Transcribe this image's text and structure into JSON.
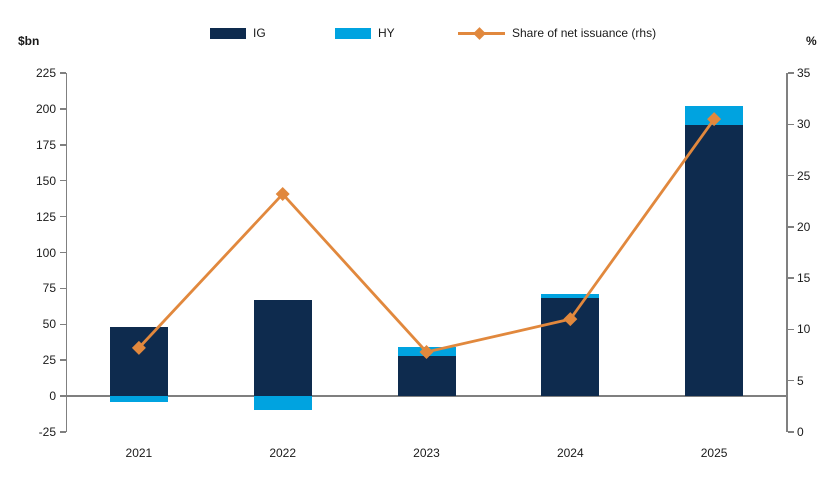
{
  "axes_units": {
    "left": "$bn",
    "right": "%"
  },
  "chart_data": {
    "type": "bar+line",
    "title": "",
    "categories": [
      "2021",
      "2022",
      "2023",
      "2024",
      "2025"
    ],
    "series": [
      {
        "name": "IG",
        "type": "bar",
        "axis": "left",
        "color": "#0e2b4e",
        "values": [
          48,
          67,
          28,
          68,
          189
        ]
      },
      {
        "name": "HY",
        "type": "bar",
        "axis": "left",
        "color": "#00a3e0",
        "values": [
          -4,
          -10,
          6,
          3,
          13
        ]
      },
      {
        "name": "Share of net issuance (rhs)",
        "type": "line",
        "axis": "right",
        "color": "#e1883d",
        "values": [
          8.2,
          23.2,
          7.8,
          11,
          30.5
        ]
      }
    ],
    "left_axis": {
      "unit": "$bn",
      "min": -25,
      "max": 225,
      "step": 25,
      "tick_labels": [
        "225",
        "200",
        "175",
        "150",
        "125",
        "100",
        "75",
        "50",
        "25",
        "0",
        "-25"
      ]
    },
    "right_axis": {
      "unit": "%",
      "min": 0,
      "max": 35,
      "step": 5,
      "tick_labels": [
        "35",
        "30",
        "25",
        "20",
        "15",
        "10",
        "5",
        "0"
      ]
    },
    "legend_position": "top",
    "grid": "zero-line-only",
    "bar_mode": "stacked",
    "colors": {
      "axis_line": "#808080",
      "zero_line": "#7f7f7f",
      "text": "#1a1a1a",
      "background": "#ffffff"
    }
  }
}
